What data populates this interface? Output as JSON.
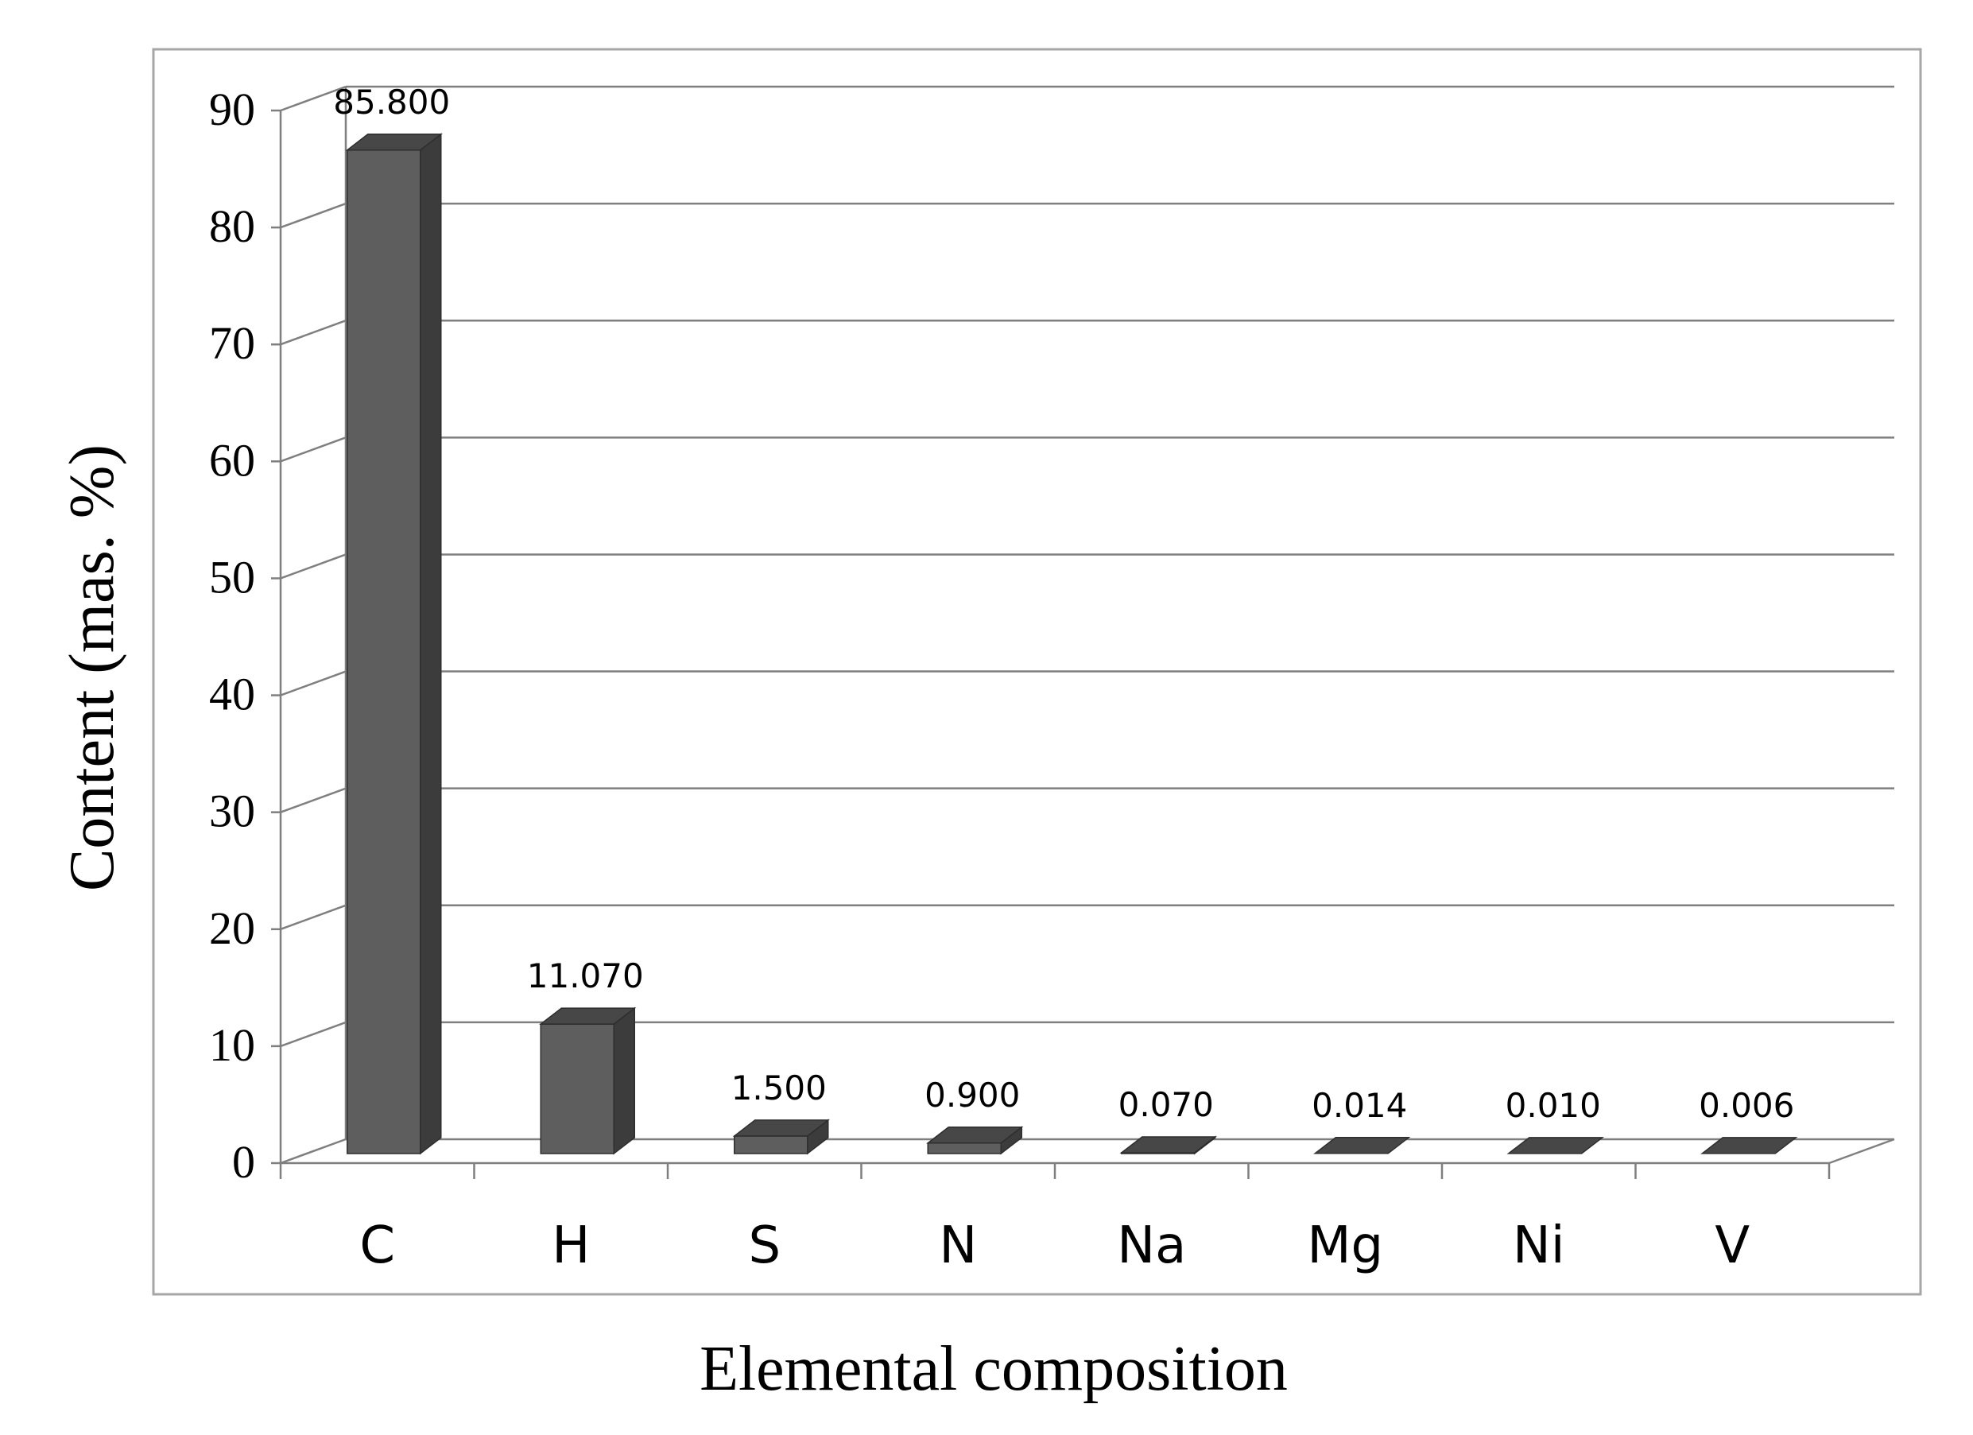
{
  "chart_data": {
    "type": "bar",
    "style": "3d-column",
    "categories": [
      "C",
      "H",
      "S",
      "N",
      "Na",
      "Mg",
      "Ni",
      "V"
    ],
    "values": [
      85.8,
      11.07,
      1.5,
      0.9,
      0.07,
      0.014,
      0.01,
      0.006
    ],
    "data_labels": [
      "85.800",
      "11.070",
      "1.500",
      "0.900",
      "0.070",
      "0.014",
      "0.010",
      "0.006"
    ],
    "xlabel": "Elemental composition",
    "ylabel": "Content (mas. %)",
    "ylim": [
      0,
      90
    ],
    "yticks": [
      "0",
      "10",
      "20",
      "30",
      "40",
      "50",
      "60",
      "70",
      "80",
      "90"
    ],
    "grid": true,
    "legend": "none",
    "colors": {
      "bar_front": "#5e5e5e",
      "bar_side": "#3c3c3c",
      "bar_top": "#474747",
      "grid": "#7f7f7f",
      "frame": "#a6a6a6",
      "text": "#000000"
    }
  }
}
